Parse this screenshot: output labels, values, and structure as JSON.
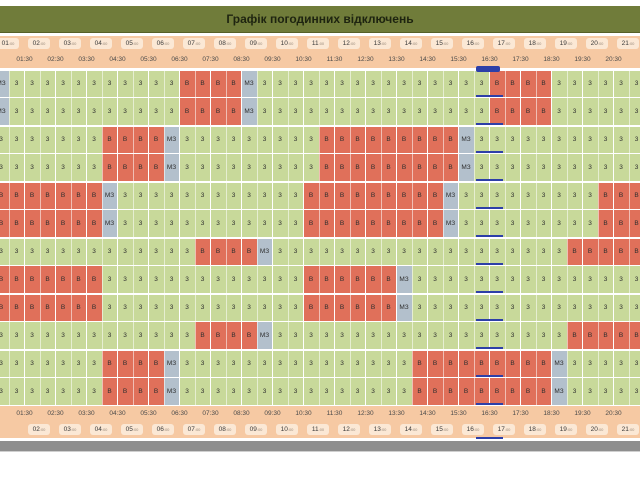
{
  "title": "Графік погодинних відключень",
  "hours_top": [
    "01",
    "02",
    "03",
    "04",
    "05",
    "06",
    "07",
    "08",
    "09",
    "10",
    "11",
    "12",
    "13",
    "14",
    "15",
    "16",
    "17",
    "18",
    "19",
    "20",
    "21"
  ],
  "halves_top": [
    "01:30",
    "02:30",
    "03:30",
    "04:30",
    "05:30",
    "06:30",
    "07:30",
    "08:30",
    "09:30",
    "10:30",
    "11:30",
    "12:30",
    "13:30",
    "14:30",
    "15:30",
    "16:30",
    "17:30",
    "18:30",
    "19:30",
    "20:30"
  ],
  "hours_bottom": [
    "02",
    "03",
    "04",
    "05",
    "06",
    "07",
    "08",
    "09",
    "10",
    "11",
    "12",
    "13",
    "14",
    "15",
    "16",
    "17",
    "18",
    "19",
    "20",
    "21"
  ],
  "halves_bottom": [
    "01:30",
    "02:30",
    "03:30",
    "04:30",
    "05:30",
    "06:30",
    "07:30",
    "08:30",
    "09:30",
    "10:30",
    "11:30",
    "12:30",
    "13:30",
    "14:30",
    "15:30",
    "16:30",
    "17:30",
    "18:30",
    "19:30",
    "20:30"
  ],
  "legend_codes": {
    "on": "3",
    "off": "В",
    "maybe": "МЗ"
  },
  "colors": {
    "on": "#c8d99a",
    "off": "#e0705a",
    "maybe": "#b3c0cc"
  },
  "rows": [
    "MOOOOOOOOOOOXXXXMOOOOOOOOOOOOOOOXXXXOOOOOOOOOXXXXXXXXXXXXXMOOOOO",
    "MOOOOOOOOOOOXXXXMOOOOOOOOOOOOOOOXXXXOOOOOOOOOXXXXXXXXXXXXXMOOOOO",
    "OOOOOOOXXXXMOOOOOOOOOXXXXXXXXXMOOOOOOOOOOOXXXXXXXXXXXXXMOOOOOOOO",
    "OOOOOOOXXXXMOOOOOOOOOXXXXXXXXXMOOOOOOOOOOOXXXXXXXXXXXXXMOOOOOOOO",
    "XXXXXXXMOOOOOOOOOOOOXXXXXXXXXMOOOOOOOOOXXXXXXXXXMOOOOXXXXXXXXXXX",
    "XXXXXXXMOOOOOOOOOOOOXXXXXXXXXMOOOOOOOOOXXXXXXXXXMOOOOXXXXXXXXXXX",
    "OOOOOOOOOOOOOXXXXMOOOOOOOOOOOOOOOOOOOXXXXXXXXXMOOOOOOXXXXXXXXXXX",
    "XXXXXXXOOOOOOOOOOOOOXXXXXXMOOOOOOOOOOOOOOOXXXXXXMOOOOXXXXXXXXXXX",
    "XXXXXXXOOOOOOOOOOOOOXXXXXXMOOOOOOOOOOOOOOOXXXXXXMOOOOXXXXXXXXXXX",
    "OOOOOOOOOOOOOXXXXMOOOOOOOOOOOOOOOOOOOXXXXXXXXXMOOOOOXXXXXXXXXXXX",
    "OOOOOOOXXXXMOOOOOOOOOOOOOOOXXXXXXXXXMOOOOOOOOOXXXXXXXXMOOOOOOOOO",
    "OOOOOOOXXXXMOOOOOOOOOOOOOOOXXXXXXXXXMOOOOOOOOOXXXXXXXXMOOOOOOOOO"
  ],
  "current_marker_label": "16:30"
}
